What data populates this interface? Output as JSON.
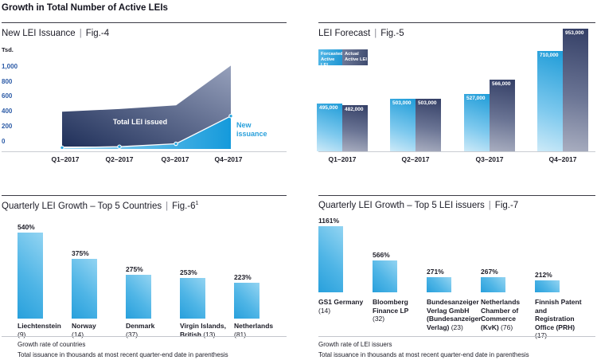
{
  "header": {
    "title": "Growth in Total Number of Active LEIs"
  },
  "ui": {
    "separator": "|"
  },
  "colors": {
    "accent_blue": "#29A4DD",
    "dark_navy": "#20305A",
    "slate": "#97A1BC",
    "axis_blue": "#2B5AA6",
    "text_dark": "#1B1B26"
  },
  "chart_data": [
    {
      "id": "new-lei-issuance",
      "type": "area",
      "title": "New LEI Issuance",
      "fig": "Fig.-4",
      "ylabel": "Tsd.",
      "ylim": [
        0,
        1000
      ],
      "yticks": [
        {
          "label": "1,000",
          "value": 1000
        },
        {
          "label": "800",
          "value": 800
        },
        {
          "label": "600",
          "value": 600
        },
        {
          "label": "400",
          "value": 400
        },
        {
          "label": "200",
          "value": 200
        },
        {
          "label": "0",
          "value": 0
        }
      ],
      "x": [
        "Q1–2017",
        "Q2–2017",
        "Q3–2017",
        "Q4–2017"
      ],
      "series": [
        {
          "name": "Total LEI issued",
          "values": [
            400,
            435,
            485,
            1020
          ]
        },
        {
          "name": "New issuance",
          "values": [
            5,
            15,
            45,
            330
          ]
        }
      ],
      "legend_position": "in-plot"
    },
    {
      "id": "lei-forecast",
      "type": "bar",
      "title": "LEI Forecast",
      "fig": "Fig.-5",
      "categories": [
        "Q1–2017",
        "Q2–2017",
        "Q3–2017",
        "Q4–2017"
      ],
      "series": [
        {
          "name": "Forcasted Active LEI",
          "values": [
            495000,
            503000,
            527000,
            710000
          ],
          "labels": [
            "495,000",
            "503,000",
            "527,000",
            "710,000"
          ]
        },
        {
          "name": "Actual Active LEI",
          "values": [
            482000,
            503000,
            566000,
            953000
          ],
          "labels": [
            "482,000",
            "503,000",
            "566,000",
            "953,000"
          ]
        }
      ],
      "legend": [
        {
          "lines": [
            "Forcasted",
            "Active LEI"
          ]
        },
        {
          "lines": [
            "Actual",
            "Active LEI"
          ]
        }
      ],
      "legend_position": "top-left"
    },
    {
      "id": "top5-countries",
      "type": "bar",
      "title": "Quarterly LEI Growth – Top 5 Countries",
      "fig": "Fig.-6",
      "fig_sup": "1",
      "unit": "%",
      "categories": [
        "Liechtenstein (9)",
        "Norway (14)",
        "Denmark (37)",
        "Virgin Islands, British (13)",
        "Netherlands (81)"
      ],
      "values": [
        540,
        375,
        275,
        253,
        223
      ],
      "labels": [
        "540%",
        "375%",
        "275%",
        "253%",
        "223%"
      ],
      "category_lines": [
        [
          {
            "b": "Liechtenstein"
          },
          {
            "r": "(9)"
          }
        ],
        [
          {
            "b": "Norway"
          },
          {
            "r": "(14)"
          }
        ],
        [
          {
            "b": "Denmark"
          },
          {
            "r": "(37)"
          }
        ],
        [
          {
            "b": "Virgin Islands,"
          },
          {
            "b": "British",
            "r": "(13)"
          }
        ],
        [
          {
            "b": "Netherlands"
          },
          {
            "r": "(81)"
          }
        ]
      ],
      "footnotes": [
        "Growth rate of countries",
        "Total issuance in thousands at most recent quarter-end date in parenthesis"
      ]
    },
    {
      "id": "top5-lei-issuers",
      "type": "bar",
      "title": "Quarterly LEI Growth – Top 5 LEI issuers",
      "fig": "Fig.-7",
      "unit": "%",
      "categories": [
        "GS1 Germany (14)",
        "Bloomberg Finance LP (32)",
        "Bundesanzeiger Verlag GmbH (Bundesanzeiger Verlag) (23)",
        "Netherlands Chamber of Commerce (KvK) (76)",
        "Finnish Patent and Registration Office (PRH) (17)"
      ],
      "values": [
        1161,
        566,
        271,
        267,
        212
      ],
      "labels": [
        "1161%",
        "566%",
        "271%",
        "267%",
        "212%"
      ],
      "category_lines": [
        [
          {
            "b": "GS1 Germany"
          },
          {
            "r": "(14)"
          }
        ],
        [
          {
            "b": "Bloomberg"
          },
          {
            "b": "Finance LP"
          },
          {
            "r": "(32)"
          }
        ],
        [
          {
            "b": "Bundesanzeiger"
          },
          {
            "b": "Verlag GmbH"
          },
          {
            "b": "(Bundesanzeiger"
          },
          {
            "b": "Verlag)",
            "r": "(23)"
          }
        ],
        [
          {
            "b": "Netherlands"
          },
          {
            "b": "Chamber of"
          },
          {
            "b": "Commerce"
          },
          {
            "b": "(KvK)",
            "r": "(76)"
          }
        ],
        [
          {
            "b": "Finnish Patent"
          },
          {
            "b": "and Registration"
          },
          {
            "b": "Office (PRH)"
          },
          {
            "r": "(17)"
          }
        ]
      ],
      "footnotes": [
        "Growth rate of LEI issuers",
        "Total issuance in thousands at most recent quarter-end date in parenthesis"
      ]
    }
  ]
}
